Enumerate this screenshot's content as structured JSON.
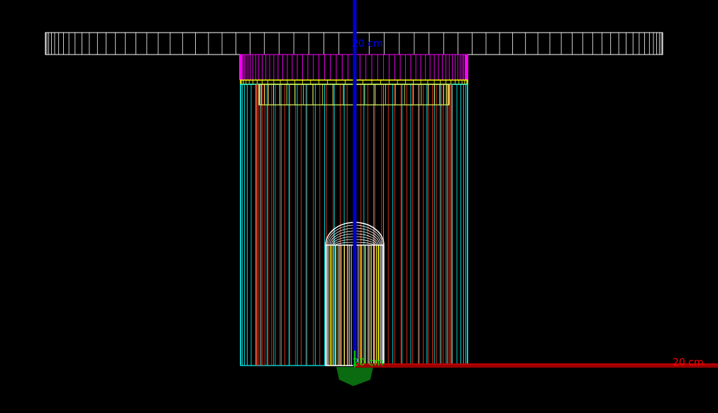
{
  "scene": {
    "background": "#000000",
    "view": "side wireframe"
  },
  "axes": {
    "x": {
      "label": "20 cm",
      "color": "#cc0000"
    },
    "y": {
      "label": "20 cm",
      "color": "#00cc00"
    },
    "z": {
      "label": "20 cm",
      "color": "#0000cc"
    }
  },
  "volumes": [
    {
      "name": "top-plate",
      "color": "#ffffff"
    },
    {
      "name": "magenta-cap",
      "color": "#ff00ff"
    },
    {
      "name": "yellow-band",
      "color": "#ffff00"
    },
    {
      "name": "inner-cup",
      "color": "#d8ff60"
    },
    {
      "name": "cyan-outer-cylinder",
      "color": "#00ffff"
    },
    {
      "name": "red-inner-lines",
      "color": "#ff3b1e"
    },
    {
      "name": "white-capsule",
      "color": "#ffffff"
    },
    {
      "name": "green-base",
      "color": "#0a6b10"
    }
  ]
}
